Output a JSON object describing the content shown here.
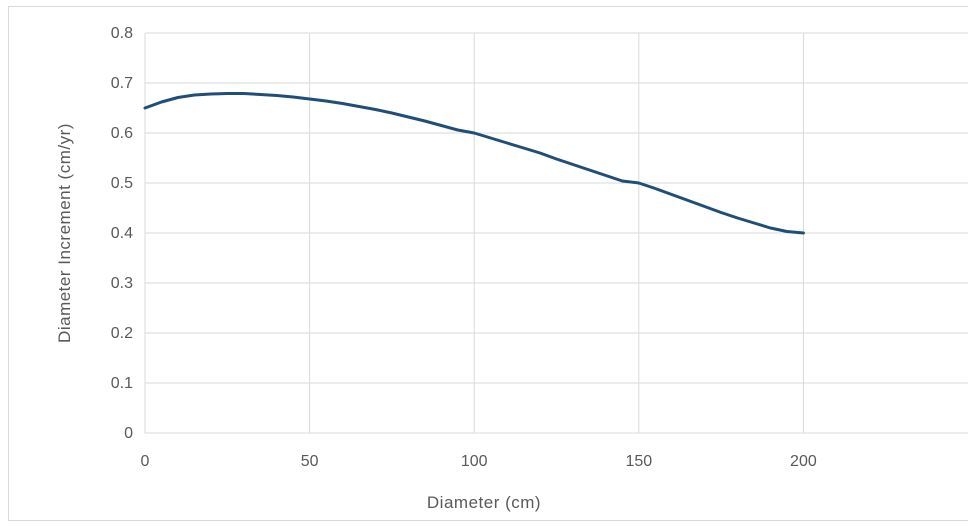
{
  "chart_data": {
    "type": "line",
    "title": "",
    "xlabel": "Diameter (cm)",
    "ylabel": "Diameter Increment (cm/yr)",
    "xlim": [
      0,
      250
    ],
    "ylim": [
      0,
      0.8
    ],
    "x_ticks": [
      0,
      50,
      100,
      150,
      200
    ],
    "x_tick_labels": [
      "0",
      "50",
      "100",
      "150",
      "200"
    ],
    "y_ticks": [
      0,
      0.1,
      0.2,
      0.3,
      0.4,
      0.5,
      0.6,
      0.7,
      0.8
    ],
    "y_tick_labels": [
      "0",
      "0.1",
      "0.2",
      "0.3",
      "0.4",
      "0.5",
      "0.6",
      "0.7",
      "0.8"
    ],
    "grid": true,
    "legend": "none",
    "series": [
      {
        "color": "#1f4e79",
        "x": [
          0,
          5,
          10,
          15,
          20,
          25,
          30,
          35,
          40,
          45,
          50,
          55,
          60,
          65,
          70,
          75,
          80,
          85,
          90,
          95,
          100,
          105,
          110,
          115,
          120,
          125,
          130,
          135,
          140,
          145,
          150,
          155,
          160,
          165,
          170,
          175,
          180,
          185,
          190,
          195,
          200
        ],
        "y": [
          0.65,
          0.662,
          0.671,
          0.676,
          0.678,
          0.679,
          0.679,
          0.677,
          0.675,
          0.672,
          0.668,
          0.664,
          0.659,
          0.653,
          0.647,
          0.64,
          0.632,
          0.624,
          0.615,
          0.606,
          0.6,
          0.59,
          0.58,
          0.57,
          0.56,
          0.548,
          0.537,
          0.526,
          0.515,
          0.504,
          0.5,
          0.489,
          0.477,
          0.465,
          0.453,
          0.441,
          0.43,
          0.42,
          0.41,
          0.403,
          0.4
        ]
      }
    ]
  }
}
